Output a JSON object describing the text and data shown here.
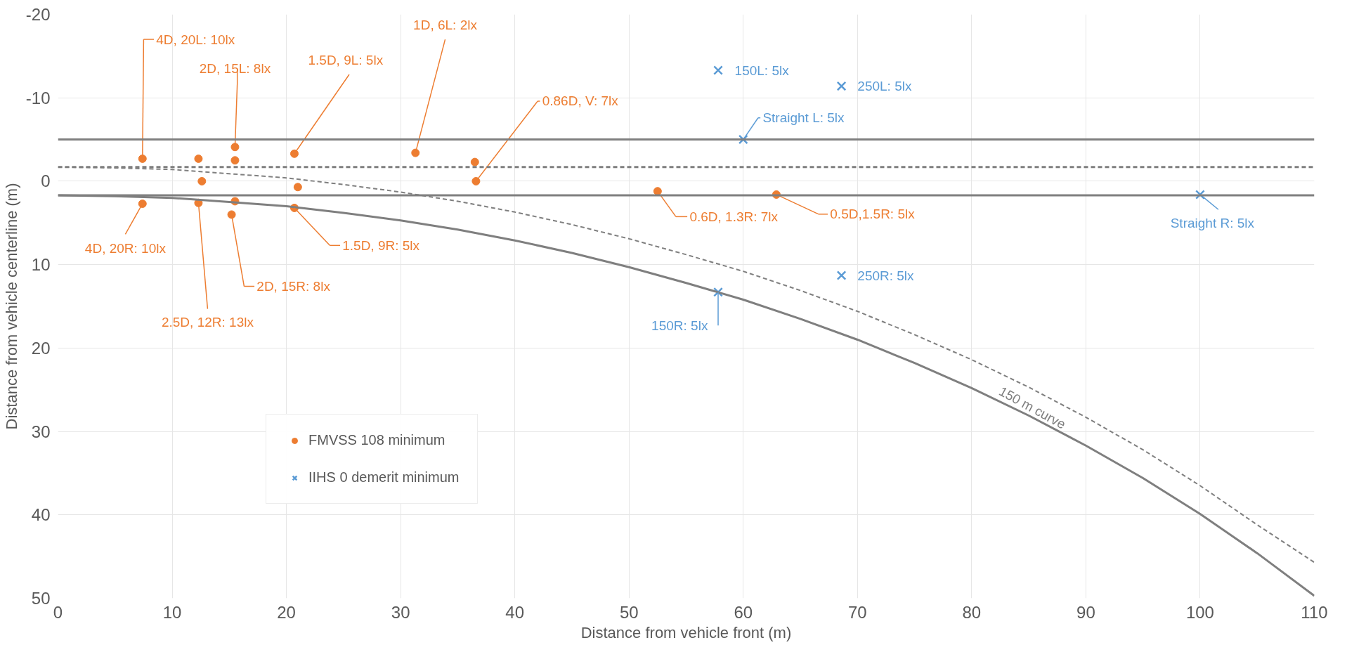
{
  "chart_data": {
    "type": "scatter",
    "xlabel": "Distance from vehicle front (m)",
    "ylabel": "Distance from vehicle centerline (m)",
    "xlim": [
      0,
      110
    ],
    "ylim": [
      50,
      -20
    ],
    "xticks": [
      0,
      10,
      20,
      30,
      40,
      50,
      60,
      70,
      80,
      90,
      100,
      110
    ],
    "yticks": [
      -20,
      -10,
      0,
      10,
      20,
      30,
      40,
      50
    ],
    "grid": true,
    "legend": "left",
    "series": [
      {
        "name": "FMVSS 108 minimum",
        "marker": "circle",
        "color": "#ed7d31",
        "x": [
          7.4,
          12.3,
          15.5,
          15.5,
          20.7,
          12.6,
          21.0,
          31.3,
          36.5,
          36.6,
          7.4,
          12.3,
          15.5,
          15.2,
          20.7,
          52.5,
          62.9
        ],
        "values": [
          -2.7,
          -2.7,
          -4.1,
          -2.5,
          -3.3,
          0.0,
          0.7,
          -3.4,
          -2.3,
          0.0,
          2.7,
          2.6,
          2.4,
          4.0,
          3.2,
          1.2,
          1.6
        ]
      },
      {
        "name": "IIHS 0 demerit minimum",
        "marker": "cross",
        "color": "#5b9bd5",
        "x": [
          57.8,
          68.6,
          60.0,
          68.6,
          57.8,
          100.0
        ],
        "values": [
          -13.3,
          -11.4,
          -5.0,
          11.3,
          13.3,
          1.6
        ]
      },
      {
        "type": "line",
        "line_style": "solid",
        "color": "#7f7f7f",
        "x": [
          0,
          5,
          10,
          15,
          20,
          25,
          30,
          35,
          40,
          45,
          50,
          55,
          60,
          65,
          70,
          75,
          80,
          85,
          90,
          95,
          100,
          105,
          110
        ],
        "values": [
          1.7,
          1.8,
          2.0,
          2.5,
          3.0,
          3.8,
          4.7,
          5.8,
          7.1,
          8.6,
          10.3,
          12.2,
          14.2,
          16.5,
          19.0,
          21.8,
          24.8,
          28.1,
          31.7,
          35.6,
          39.9,
          44.6,
          49.7
        ]
      },
      {
        "type": "line",
        "line_style": "dashed",
        "color": "#7f7f7f",
        "x": [
          0,
          5,
          10,
          15,
          20,
          25,
          30,
          35,
          40,
          45,
          50,
          55,
          60,
          65,
          70,
          75,
          80,
          85,
          90,
          95,
          100,
          105,
          110
        ],
        "values": [
          -1.7,
          -1.6,
          -1.4,
          -0.9,
          -0.4,
          0.4,
          1.3,
          2.4,
          3.7,
          5.2,
          6.9,
          8.8,
          10.8,
          13.1,
          15.6,
          18.4,
          21.4,
          24.7,
          28.3,
          32.2,
          36.5,
          41.2,
          45.7
        ]
      }
    ],
    "ref_lines": [
      {
        "axis": "y",
        "value": -5,
        "color": "#7f7f7f",
        "line_style": "solid"
      },
      {
        "axis": "y",
        "value": 1.7,
        "color": "#7f7f7f",
        "line_style": "solid"
      },
      {
        "axis": "y",
        "value": -1.7,
        "color": "#7f7f7f",
        "line_style": "dashed"
      }
    ],
    "annotations": [
      {
        "text": "4D, 20L: 10lx",
        "x": 7.4,
        "y": -2.7
      },
      {
        "text": "2D, 15L: 8lx",
        "x": 15.5,
        "y": -4.1
      },
      {
        "text": "1.5D, 9L: 5lx",
        "x": 20.7,
        "y": -3.3
      },
      {
        "text": "1D, 6L: 2lx",
        "x": 31.3,
        "y": -3.4
      },
      {
        "text": "0.86D, V: 7lx",
        "x": 36.6,
        "y": 0.0
      },
      {
        "text": "4D, 20R: 10lx",
        "x": 7.4,
        "y": 2.7
      },
      {
        "text": "2.5D, 12R: 13lx",
        "x": 12.3,
        "y": 2.6
      },
      {
        "text": "2D, 15R: 8lx",
        "x": 15.2,
        "y": 4.0
      },
      {
        "text": "1.5D, 9R: 5lx",
        "x": 20.7,
        "y": 3.2
      },
      {
        "text": "0.6D, 1.3R: 7lx",
        "x": 52.5,
        "y": 1.2
      },
      {
        "text": "0.5D,1.5R: 5lx",
        "x": 62.9,
        "y": 1.6
      },
      {
        "text": "150L: 5lx",
        "x": 57.8,
        "y": -13.3
      },
      {
        "text": "250L: 5lx",
        "x": 68.6,
        "y": -11.4
      },
      {
        "text": "Straight L: 5lx",
        "x": 60.0,
        "y": -5.0
      },
      {
        "text": "250R: 5lx",
        "x": 68.6,
        "y": 11.3
      },
      {
        "text": "150R: 5lx",
        "x": 57.8,
        "y": 13.3
      },
      {
        "text": "Straight R: 5lx",
        "x": 100.0,
        "y": 1.6
      },
      "150 m curve"
    ]
  }
}
